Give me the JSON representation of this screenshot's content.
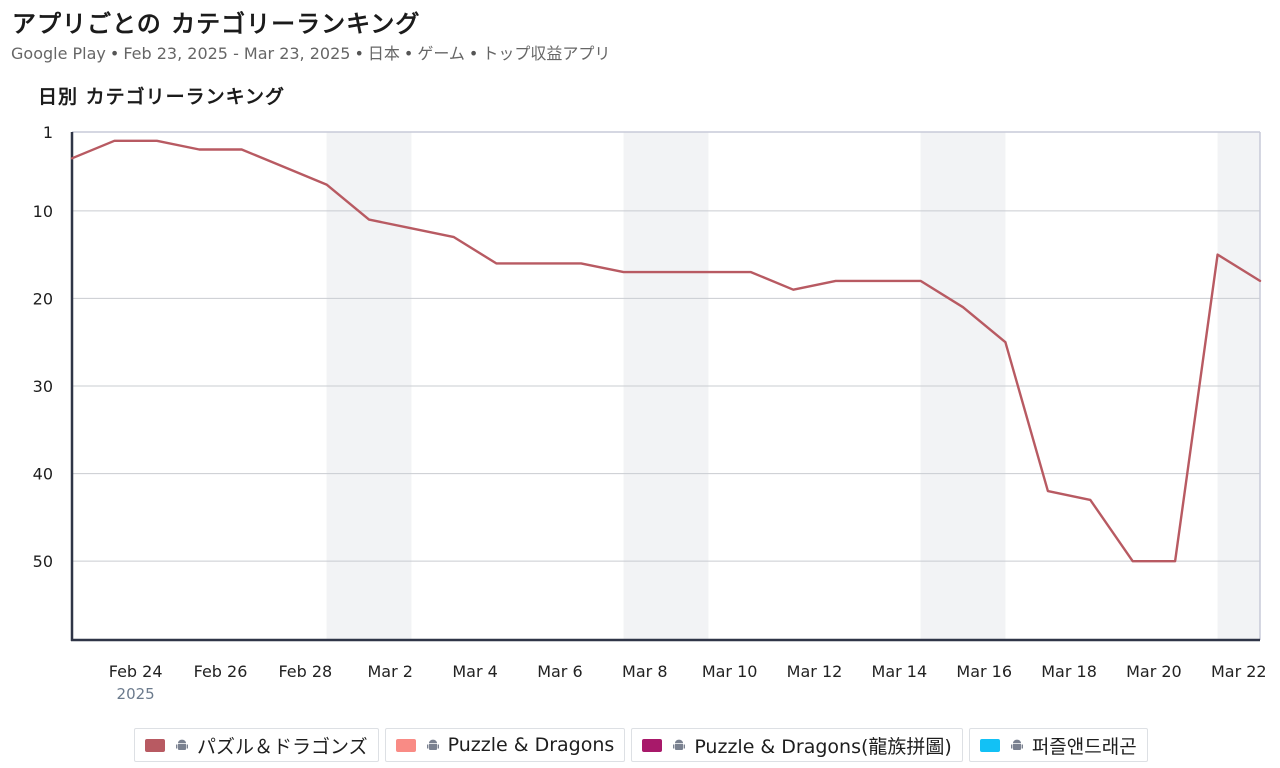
{
  "header": {
    "title": "アプリごとの カテゴリーランキング",
    "subtitle_parts": [
      "Google Play",
      "Feb 23, 2025 - Mar 23, 2025",
      "日本",
      "ゲーム",
      "トップ収益アプリ"
    ]
  },
  "chart_title": "日別 カテゴリーランキング",
  "chart_data": {
    "type": "line",
    "title": "日別 カテゴリーランキング",
    "y_inverted": true,
    "ylim": [
      1,
      59
    ],
    "yticks": [
      1,
      10,
      20,
      30,
      40,
      50
    ],
    "xlim": [
      "2025-02-23",
      "2025-03-23"
    ],
    "x_ticks": [
      "Feb 24",
      "Feb 26",
      "Feb 28",
      "Mar 2",
      "Mar 4",
      "Mar 6",
      "Mar 8",
      "Mar 10",
      "Mar 12",
      "Mar 14",
      "Mar 16",
      "Mar 18",
      "Mar 20",
      "Mar 22"
    ],
    "x_tick_sublabel": "2025",
    "weekend_shading": true,
    "grid": true,
    "x": [
      "2025-02-23",
      "2025-02-24",
      "2025-02-25",
      "2025-02-26",
      "2025-02-27",
      "2025-02-28",
      "2025-03-01",
      "2025-03-02",
      "2025-03-03",
      "2025-03-04",
      "2025-03-05",
      "2025-03-06",
      "2025-03-07",
      "2025-03-08",
      "2025-03-09",
      "2025-03-10",
      "2025-03-11",
      "2025-03-12",
      "2025-03-13",
      "2025-03-14",
      "2025-03-15",
      "2025-03-16",
      "2025-03-17",
      "2025-03-18",
      "2025-03-19",
      "2025-03-20",
      "2025-03-21",
      "2025-03-22",
      "2025-03-23"
    ],
    "series": [
      {
        "name": "パズル＆ドラゴンズ",
        "color": "#b85a62",
        "values": [
          4,
          2,
          2,
          3,
          3,
          5,
          7,
          11,
          12,
          13,
          16,
          16,
          16,
          17,
          17,
          17,
          17,
          19,
          18,
          18,
          18,
          21,
          25,
          42,
          43,
          50,
          50,
          15,
          18
        ]
      }
    ]
  },
  "legend": [
    {
      "label": "パズル＆ドラゴンズ",
      "color": "#b85a62",
      "icon": "android-icon"
    },
    {
      "label": "Puzzle & Dragons",
      "color": "#f98b85",
      "icon": "android-icon"
    },
    {
      "label": "Puzzle & Dragons(龍族拼圖)",
      "color": "#a8196a",
      "icon": "android-icon"
    },
    {
      "label": "퍼즐앤드래곤",
      "color": "#12c1f5",
      "icon": "android-icon"
    }
  ]
}
